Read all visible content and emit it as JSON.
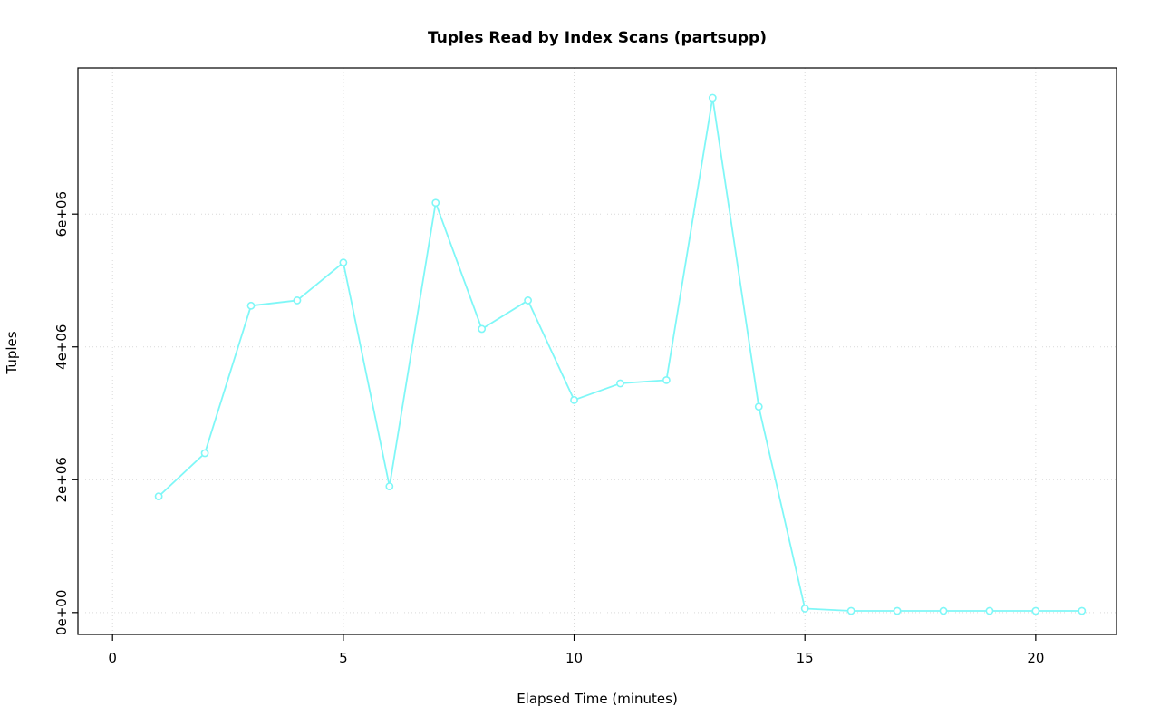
{
  "chart_data": {
    "type": "line",
    "title": "Tuples Read by Index Scans (partsupp)",
    "xlabel": "Elapsed Time (minutes)",
    "ylabel": "Tuples",
    "x": [
      1,
      2,
      3,
      4,
      5,
      6,
      7,
      8,
      9,
      10,
      11,
      12,
      13,
      14,
      15,
      16,
      17,
      18,
      19,
      20,
      21
    ],
    "values": [
      1750000,
      2400000,
      4620000,
      4700000,
      5270000,
      1900000,
      6170000,
      4270000,
      4700000,
      3200000,
      3450000,
      3500000,
      7750000,
      3100000,
      60000,
      25000,
      25000,
      25000,
      25000,
      25000,
      25000
    ],
    "xlim": [
      -0.75,
      21.75
    ],
    "ylim": [
      -330000,
      8200000
    ],
    "x_ticks": [
      0,
      5,
      10,
      15,
      20
    ],
    "x_tick_labels": [
      "0",
      "5",
      "10",
      "15",
      "20"
    ],
    "y_ticks": [
      0,
      2000000,
      4000000,
      6000000
    ],
    "y_tick_labels": [
      "0e+00",
      "2e+06",
      "4e+06",
      "6e+06"
    ],
    "grid": true,
    "legend": "none",
    "line_color": "#7FF7F7",
    "marker_fill": "#ffffff",
    "grid_color": "#d9d9d9",
    "axis_color": "#000000"
  }
}
